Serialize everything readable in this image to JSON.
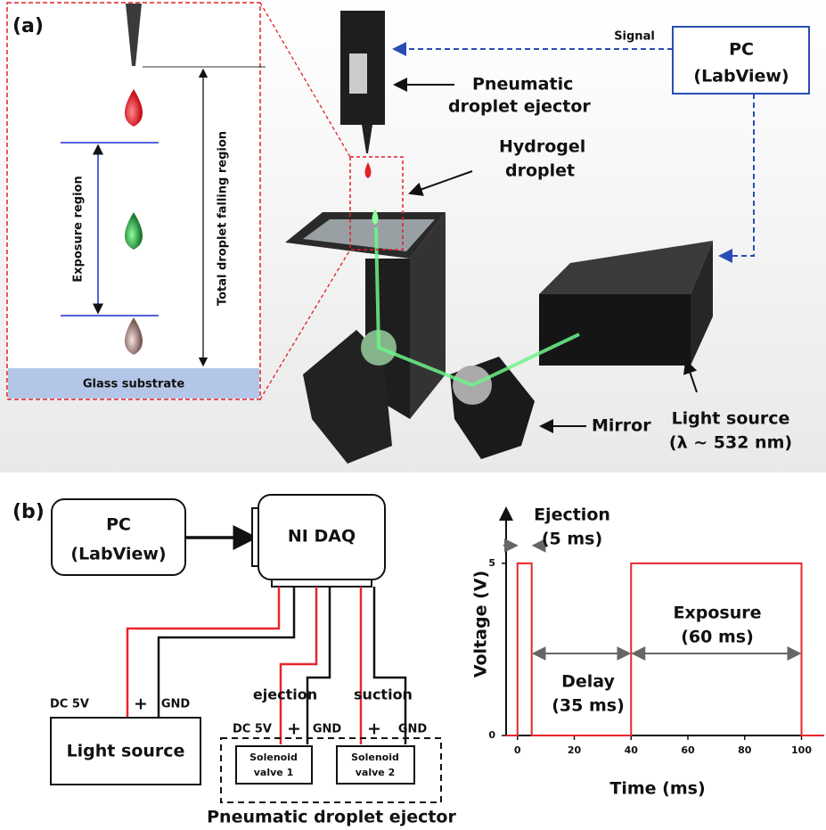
{
  "panel_a": {
    "label": "(a)",
    "inset": {
      "exposure_region": "Exposure region",
      "total_region": "Total droplet falling region",
      "substrate": "Glass substrate"
    },
    "signal": "Signal",
    "pc": [
      "PC",
      "(LabView)"
    ],
    "ejector": [
      "Pneumatic",
      "droplet ejector"
    ],
    "droplet": [
      "Hydrogel",
      "droplet"
    ],
    "light_source": [
      "Light source",
      "(λ ~ 532 nm)"
    ],
    "mirror": "Mirror"
  },
  "panel_b": {
    "label": "(b)",
    "pc": [
      "PC",
      "(LabView)"
    ],
    "daq": "NI DAQ",
    "light_source": {
      "supply": "DC 5V",
      "plus": "+",
      "gnd": "GND",
      "label": "Light source"
    },
    "ejector": {
      "ejection": "ejection",
      "suction": "suction",
      "supply": "DC 5V",
      "plus_1": "+",
      "gnd_1": "GND",
      "plus_2": "+",
      "gnd_2": "GND",
      "valve_1": [
        "Solenoid",
        "valve 1"
      ],
      "valve_2": [
        "Solenoid",
        "valve 2"
      ],
      "label": "Pneumatic droplet ejector"
    }
  },
  "chart_data": {
    "type": "line",
    "x_label": "Time (ms)",
    "y_label": "Voltage (V)",
    "x": [
      -4,
      0,
      0,
      5,
      5,
      40,
      40,
      100,
      100,
      108
    ],
    "values": [
      0,
      0,
      5,
      5,
      0,
      0,
      5,
      5,
      0,
      0
    ],
    "color": "#e8262b",
    "xlim": [
      -4,
      108
    ],
    "ylim": [
      0,
      6.6
    ],
    "xticks": [
      0,
      20,
      40,
      60,
      80,
      100
    ],
    "yticks": [
      0,
      5
    ],
    "annotations": [
      [
        "Ejection",
        "(5 ms)"
      ],
      [
        "Delay",
        "(35 ms)"
      ],
      [
        "Exposure",
        "(60 ms)"
      ]
    ]
  }
}
